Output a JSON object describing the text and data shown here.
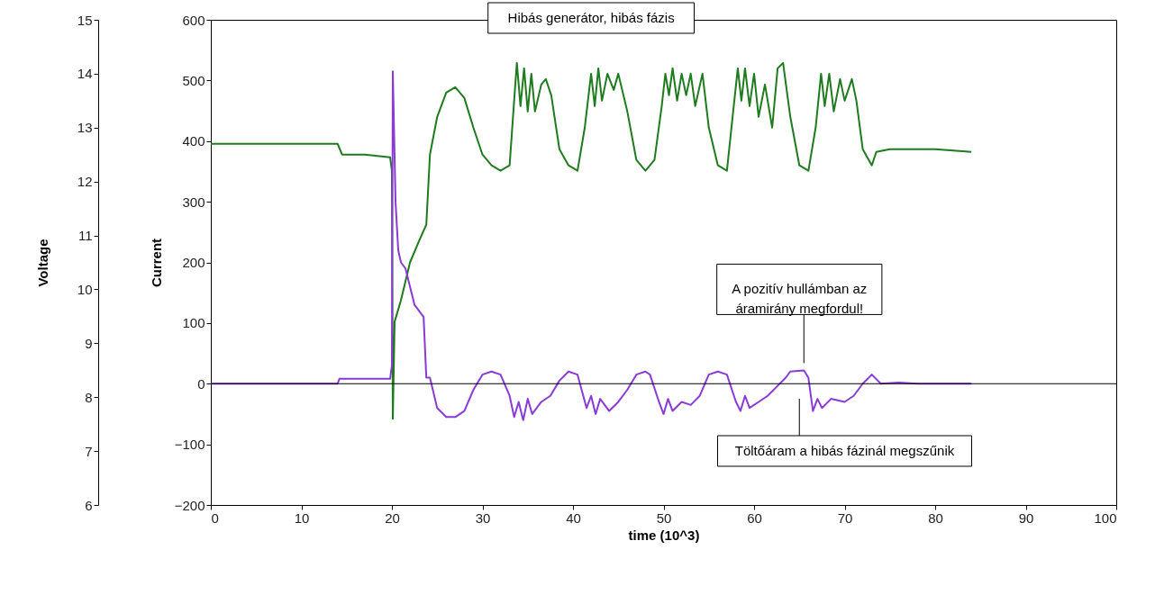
{
  "chart_data": {
    "type": "line",
    "xlabel": "time (10^3)",
    "ylabel": "Current",
    "y2label": "Voltage",
    "xlim": [
      0,
      100
    ],
    "xticks": [
      0,
      10,
      20,
      30,
      40,
      50,
      60,
      70,
      80,
      90,
      100
    ],
    "ylim": [
      -200,
      600
    ],
    "yticks": [
      -200,
      -100,
      0,
      100,
      200,
      300,
      400,
      500,
      600
    ],
    "y2lim": [
      6,
      15
    ],
    "y2ticks": [
      6,
      7,
      8,
      9,
      10,
      11,
      12,
      13,
      14,
      15
    ],
    "grid": false,
    "series": [
      {
        "color": "#1e7b1e",
        "axis": "y2",
        "x": [
          0,
          14,
          14.5,
          17,
          19.8,
          20,
          20.1,
          20.3,
          21,
          22,
          23,
          23.8,
          24.2,
          25,
          26,
          27,
          28,
          29,
          30,
          31,
          32,
          33,
          33.5,
          33.8,
          34.2,
          34.6,
          35,
          35.4,
          35.8,
          36.5,
          37,
          37.6,
          38.5,
          39.5,
          40.5,
          41.3,
          42,
          42.4,
          42.8,
          43.2,
          43.8,
          44.5,
          45,
          46,
          47,
          48,
          49,
          49.8,
          50.2,
          50.6,
          51,
          51.5,
          52,
          52.5,
          53,
          53.5,
          54.3,
          55,
          56,
          57,
          57.5,
          58.2,
          58.6,
          59,
          59.5,
          60,
          60.5,
          61.2,
          62,
          62.6,
          63.2,
          64,
          65,
          66,
          66.8,
          67.4,
          67.8,
          68.3,
          68.8,
          69.5,
          70,
          70.8,
          71.3,
          72,
          73,
          73.5,
          75,
          80,
          84
        ],
        "values": [
          12.7,
          12.7,
          12.5,
          12.5,
          12.45,
          12.2,
          7.6,
          9.4,
          9.8,
          10.5,
          10.9,
          11.2,
          12.5,
          13.2,
          13.65,
          13.75,
          13.55,
          13.0,
          12.5,
          12.3,
          12.2,
          12.3,
          13.5,
          14.2,
          13.4,
          14.1,
          13.3,
          14.0,
          13.3,
          13.8,
          13.9,
          13.6,
          12.6,
          12.3,
          12.2,
          13.0,
          14.0,
          13.4,
          14.1,
          13.5,
          14.0,
          13.7,
          14.0,
          13.3,
          12.4,
          12.2,
          12.4,
          13.4,
          14.0,
          13.6,
          14.1,
          13.5,
          14.0,
          13.6,
          14.0,
          13.4,
          14.0,
          13.0,
          12.3,
          12.2,
          13.0,
          14.1,
          13.5,
          14.1,
          13.4,
          14.0,
          13.2,
          13.8,
          13.0,
          14.1,
          14.2,
          13.2,
          12.3,
          12.2,
          13.0,
          14.0,
          13.4,
          14.0,
          13.3,
          13.9,
          13.5,
          13.9,
          13.5,
          12.6,
          12.3,
          12.55,
          12.6,
          12.6,
          12.55
        ]
      },
      {
        "color": "#8a3ad6",
        "x": [
          0,
          14,
          14.2,
          19.8,
          20,
          20.1,
          20.4,
          20.7,
          21,
          21.5,
          22,
          22.5,
          23.5,
          23.8,
          24.2,
          25,
          26,
          27,
          28,
          29,
          30,
          31,
          32,
          33,
          33.5,
          34,
          34.5,
          35,
          35.5,
          36.5,
          37.5,
          38.5,
          39.5,
          40.5,
          41.5,
          42,
          42.5,
          43,
          44,
          45,
          46,
          47,
          48,
          48.5,
          49.5,
          50,
          50.5,
          51,
          52,
          53,
          54,
          55,
          56,
          57,
          58,
          58.5,
          59,
          59.5,
          60.5,
          61.5,
          62.5,
          63.5,
          64,
          65.5,
          66,
          66.5,
          67,
          67.5,
          68.5,
          70,
          71,
          72,
          73,
          74,
          76,
          78,
          84
        ],
        "values": [
          0,
          0,
          8,
          8,
          30,
          515,
          300,
          220,
          200,
          190,
          160,
          130,
          110,
          10,
          10,
          -40,
          -55,
          -55,
          -45,
          -10,
          15,
          20,
          15,
          -20,
          -55,
          -30,
          -60,
          -25,
          -50,
          -30,
          -20,
          5,
          20,
          15,
          -40,
          -20,
          -50,
          -25,
          -45,
          -30,
          -10,
          15,
          20,
          15,
          -30,
          -50,
          -25,
          -45,
          -30,
          -35,
          -20,
          15,
          20,
          15,
          -30,
          -45,
          -20,
          -40,
          -30,
          -20,
          -5,
          10,
          20,
          22,
          10,
          -45,
          -25,
          -40,
          -25,
          -30,
          -20,
          0,
          15,
          0,
          2,
          0,
          0
        ]
      }
    ],
    "ref_lines": [
      {
        "axis": "y",
        "value": 0,
        "color": "#000000"
      }
    ],
    "annotations": [
      "Hibás generátor, hibás fázis",
      {
        "text": "A pozitív hullámban az\náramirány megfordul!",
        "x": 65.5,
        "y": 22
      },
      "Töltőáram a hibás fázinál megszűnik"
    ]
  }
}
